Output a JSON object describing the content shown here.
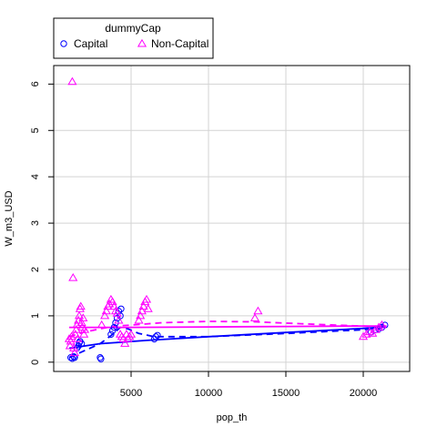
{
  "chart_data": {
    "type": "scatter",
    "xlabel": "pop_th",
    "ylabel": "W_m3_USD",
    "xlim": [
      0,
      23000
    ],
    "ylim": [
      -0.2,
      6.4
    ],
    "x_ticks": [
      5000,
      10000,
      15000,
      20000
    ],
    "y_ticks": [
      0,
      1,
      2,
      3,
      4,
      5,
      6
    ],
    "x_tick_labels": [
      "5000",
      "10000",
      "15000",
      "20000"
    ],
    "y_tick_labels": [
      "0",
      "1",
      "2",
      "3",
      "4",
      "5",
      "6"
    ],
    "grid": true,
    "legend": {
      "title": "dummyCap",
      "position": "top-left-outside",
      "entries": [
        "Capital",
        "Non-Capital"
      ]
    },
    "colors": {
      "Capital": "#0000ff",
      "Non-Capital": "#ff00ff",
      "grid": "#d3d3d3"
    },
    "series": [
      {
        "name": "Capital",
        "marker": "circle",
        "points": [
          [
            1100,
            0.1
          ],
          [
            1200,
            0.08
          ],
          [
            1300,
            0.12
          ],
          [
            1350,
            0.1
          ],
          [
            1500,
            0.3
          ],
          [
            1600,
            0.35
          ],
          [
            1650,
            0.42
          ],
          [
            1700,
            0.45
          ],
          [
            1800,
            0.4
          ],
          [
            3000,
            0.1
          ],
          [
            3050,
            0.07
          ],
          [
            3700,
            0.6
          ],
          [
            3800,
            0.68
          ],
          [
            3900,
            0.75
          ],
          [
            4000,
            0.85
          ],
          [
            4100,
            0.95
          ],
          [
            4200,
            1.1
          ],
          [
            4300,
            1.0
          ],
          [
            4350,
            1.15
          ],
          [
            6500,
            0.5
          ],
          [
            6600,
            0.55
          ],
          [
            6700,
            0.58
          ],
          [
            20500,
            0.65
          ],
          [
            20800,
            0.7
          ],
          [
            21000,
            0.72
          ],
          [
            21200,
            0.75
          ],
          [
            21400,
            0.8
          ]
        ],
        "fit_solid": [
          [
            1000,
            0.3
          ],
          [
            3000,
            0.4
          ],
          [
            6000,
            0.47
          ],
          [
            10000,
            0.55
          ],
          [
            15000,
            0.64
          ],
          [
            20000,
            0.73
          ],
          [
            21500,
            0.76
          ]
        ],
        "fit_dashed": [
          [
            1000,
            0.1
          ],
          [
            2000,
            0.25
          ],
          [
            3000,
            0.4
          ],
          [
            3800,
            0.6
          ],
          [
            4300,
            0.75
          ],
          [
            4800,
            0.72
          ],
          [
            5500,
            0.62
          ],
          [
            6500,
            0.55
          ],
          [
            10000,
            0.55
          ],
          [
            15000,
            0.62
          ],
          [
            20000,
            0.7
          ],
          [
            21500,
            0.75
          ]
        ]
      },
      {
        "name": "Non-Capital",
        "marker": "triangle",
        "points": [
          [
            1000,
            0.5
          ],
          [
            1050,
            0.35
          ],
          [
            1100,
            0.45
          ],
          [
            1150,
            0.55
          ],
          [
            1200,
            6.05
          ],
          [
            1250,
            1.82
          ],
          [
            1300,
            0.3
          ],
          [
            1350,
            0.2
          ],
          [
            1400,
            0.6
          ],
          [
            1450,
            0.7
          ],
          [
            1500,
            0.8
          ],
          [
            1550,
            0.5
          ],
          [
            1600,
            0.9
          ],
          [
            1650,
            1.0
          ],
          [
            1700,
            1.15
          ],
          [
            1750,
            1.2
          ],
          [
            1800,
            0.85
          ],
          [
            1850,
            0.75
          ],
          [
            1900,
            0.95
          ],
          [
            1950,
            0.6
          ],
          [
            2000,
            0.7
          ],
          [
            3100,
            0.8
          ],
          [
            3300,
            1.0
          ],
          [
            3400,
            1.1
          ],
          [
            3500,
            1.2
          ],
          [
            3600,
            1.25
          ],
          [
            3700,
            1.35
          ],
          [
            3800,
            1.3
          ],
          [
            3900,
            1.2
          ],
          [
            4000,
            1.1
          ],
          [
            4100,
            1.05
          ],
          [
            4200,
            0.9
          ],
          [
            4300,
            0.6
          ],
          [
            4400,
            0.55
          ],
          [
            4500,
            0.5
          ],
          [
            4600,
            0.4
          ],
          [
            4700,
            0.6
          ],
          [
            4800,
            0.5
          ],
          [
            4900,
            0.55
          ],
          [
            5000,
            0.6
          ],
          [
            5500,
            0.9
          ],
          [
            5600,
            1.0
          ],
          [
            5700,
            1.1
          ],
          [
            5800,
            1.2
          ],
          [
            5900,
            1.3
          ],
          [
            6000,
            1.35
          ],
          [
            6100,
            1.15
          ],
          [
            13000,
            0.95
          ],
          [
            13200,
            1.1
          ],
          [
            20000,
            0.55
          ],
          [
            20200,
            0.6
          ],
          [
            20400,
            0.65
          ],
          [
            20600,
            0.62
          ],
          [
            20800,
            0.7
          ],
          [
            21000,
            0.75
          ],
          [
            21200,
            0.8
          ]
        ],
        "fit_solid": [
          [
            1000,
            0.75
          ],
          [
            5000,
            0.75
          ],
          [
            10000,
            0.76
          ],
          [
            15000,
            0.77
          ],
          [
            20000,
            0.78
          ],
          [
            21500,
            0.78
          ]
        ],
        "fit_dashed": [
          [
            1000,
            0.55
          ],
          [
            2000,
            0.65
          ],
          [
            3000,
            0.72
          ],
          [
            4000,
            0.78
          ],
          [
            5000,
            0.8
          ],
          [
            7000,
            0.85
          ],
          [
            10000,
            0.88
          ],
          [
            13000,
            0.87
          ],
          [
            16000,
            0.83
          ],
          [
            19000,
            0.79
          ],
          [
            21500,
            0.76
          ]
        ]
      }
    ]
  }
}
